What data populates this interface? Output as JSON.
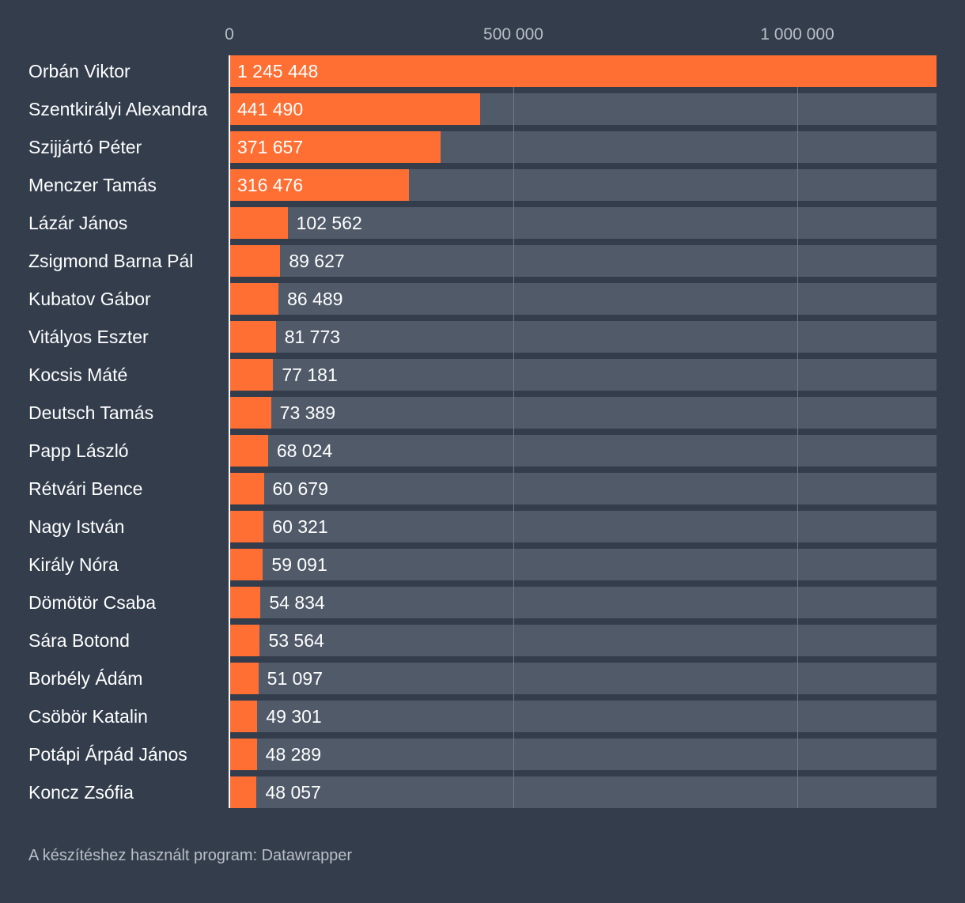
{
  "chart_data": {
    "type": "bar",
    "orientation": "horizontal",
    "categories": [
      "Orbán Viktor",
      "Szentkirályi Alexandra",
      "Szijjártó Péter",
      "Menczer Tamás",
      "Lázár János",
      "Zsigmond Barna Pál",
      "Kubatov Gábor",
      "Vitályos Eszter",
      "Kocsis Máté",
      "Deutsch Tamás",
      "Papp László",
      "Rétvári Bence",
      "Nagy István",
      "Király Nóra",
      "Dömötör Csaba",
      "Sára Botond",
      "Borbély Ádám",
      "Csöbör Katalin",
      "Potápi Árpád János",
      "Koncz Zsófia"
    ],
    "values": [
      1245448,
      441490,
      371657,
      316476,
      102562,
      89627,
      86489,
      81773,
      77181,
      73389,
      68024,
      60679,
      60321,
      59091,
      54834,
      53564,
      51097,
      49301,
      48289,
      48057
    ],
    "value_labels": [
      "1 245 448",
      "441 490",
      "371 657",
      "316 476",
      "102 562",
      "89 627",
      "86 489",
      "81 773",
      "77 181",
      "73 389",
      "68 024",
      "60 679",
      "60 321",
      "59 091",
      "54 834",
      "53 564",
      "51 097",
      "49 301",
      "48 289",
      "48 057"
    ],
    "x_ticks": [
      {
        "value": 0,
        "label": "0"
      },
      {
        "value": 500000,
        "label": "500 000"
      },
      {
        "value": 1000000,
        "label": "1 000 000"
      }
    ],
    "xlim": [
      0,
      1245448
    ],
    "grid": true,
    "legend": "none",
    "title": "",
    "xlabel": "",
    "ylabel": ""
  },
  "colors": {
    "background": "#333d4c",
    "bar": "#ff6e33",
    "track": "#505a69",
    "gridline": "#6f7987",
    "text": "#ffffff",
    "muted_text": "#b9bfc8"
  },
  "footer": {
    "credit": "A készítéshez használt program: Datawrapper"
  }
}
